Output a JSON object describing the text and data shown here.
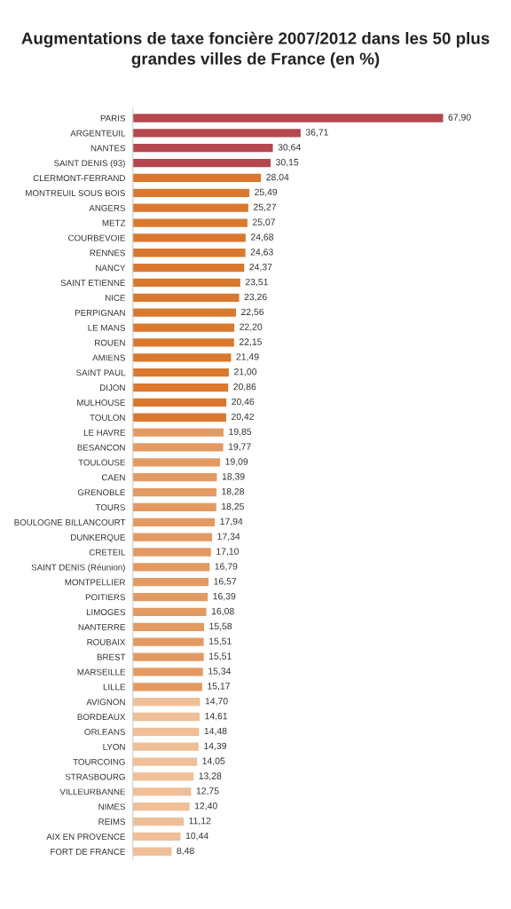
{
  "chart_data": {
    "type": "bar",
    "orientation": "horizontal",
    "title": "Augmentations de taxe foncière 2007/2012 dans les 50 plus grandes villes de France (en %)",
    "categories": [
      "PARIS",
      "ARGENTEUIL",
      "NANTES",
      "SAINT DENIS (93)",
      "CLERMONT-FERRAND",
      "MONTREUIL SOUS BOIS",
      "ANGERS",
      "METZ",
      "COURBEVOIE",
      "RENNES",
      "NANCY",
      "SAINT ETIENNE",
      "NICE",
      "PERPIGNAN",
      "LE MANS",
      "ROUEN",
      "AMIENS",
      "SAINT PAUL",
      "DIJON",
      "MULHOUSE",
      "TOULON",
      "LE HAVRE",
      "BESANCON",
      "TOULOUSE",
      "CAEN",
      "GRENOBLE",
      "TOURS",
      "BOULOGNE BILLANCOURT",
      "DUNKERQUE",
      "CRETEIL",
      "SAINT DENIS (Réunion)",
      "MONTPELLIER",
      "POITIERS",
      "LIMOGES",
      "NANTERRE",
      "ROUBAIX",
      "BREST",
      "MARSEILLE",
      "LILLE",
      "AVIGNON",
      "BORDEAUX",
      "ORLEANS",
      "LYON",
      "TOURCOING",
      "STRASBOURG",
      "VILLEURBANNE",
      "NIMES",
      "REIMS",
      "AIX EN PROVENCE",
      "FORT DE FRANCE"
    ],
    "values": [
      67.9,
      36.71,
      30.64,
      30.15,
      28.04,
      25.49,
      25.27,
      25.07,
      24.68,
      24.63,
      24.37,
      23.51,
      23.26,
      22.56,
      22.2,
      22.15,
      21.49,
      21.0,
      20.86,
      20.46,
      20.42,
      19.85,
      19.77,
      19.09,
      18.39,
      18.28,
      18.25,
      17.94,
      17.34,
      17.1,
      16.79,
      16.57,
      16.39,
      16.08,
      15.58,
      15.51,
      15.51,
      15.34,
      15.17,
      14.7,
      14.61,
      14.48,
      14.39,
      14.05,
      13.28,
      12.75,
      12.4,
      11.12,
      10.44,
      8.48
    ],
    "value_labels": [
      "67,90",
      "36,71",
      "30,64",
      "30,15",
      "28,04",
      "25,49",
      "25,27",
      "25,07",
      "24,68",
      "24,63",
      "24,37",
      "23,51",
      "23,26",
      "22,56",
      "22,20",
      "22,15",
      "21,49",
      "21,00",
      "20,86",
      "20,46",
      "20,42",
      "19,85",
      "19,77",
      "19,09",
      "18,39",
      "18,28",
      "18,25",
      "17,94",
      "17,34",
      "17,10",
      "16,79",
      "16,57",
      "16,39",
      "16,08",
      "15,58",
      "15,51",
      "15,51",
      "15,34",
      "15,17",
      "14,70",
      "14,61",
      "14,48",
      "14,39",
      "14,05",
      "13,28",
      "12,75",
      "12,40",
      "11,12",
      "10,44",
      "8,48"
    ],
    "colors": [
      "#b5474f",
      "#b5474f",
      "#b5474f",
      "#b5474f",
      "#d9782e",
      "#d9782e",
      "#d9782e",
      "#d9782e",
      "#d9782e",
      "#d9782e",
      "#d9782e",
      "#d9782e",
      "#d9782e",
      "#d9782e",
      "#d9782e",
      "#d9782e",
      "#d9782e",
      "#d9782e",
      "#d9782e",
      "#d9782e",
      "#d9782e",
      "#e39a62",
      "#e39a62",
      "#e39a62",
      "#e39a62",
      "#e39a62",
      "#e39a62",
      "#e39a62",
      "#e39a62",
      "#e39a62",
      "#e39a62",
      "#e39a62",
      "#e39a62",
      "#e39a62",
      "#e39a62",
      "#e39a62",
      "#e39a62",
      "#e39a62",
      "#e39a62",
      "#efbf98",
      "#efbf98",
      "#efbf98",
      "#efbf98",
      "#efbf98",
      "#efbf98",
      "#efbf98",
      "#efbf98",
      "#efbf98",
      "#efbf98",
      "#efbf98"
    ]
  }
}
